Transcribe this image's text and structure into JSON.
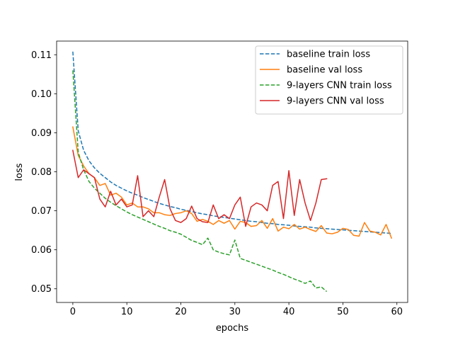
{
  "chart_data": {
    "type": "line",
    "title": "",
    "xlabel": "epochs",
    "ylabel": "loss",
    "xlim": [
      -3,
      62
    ],
    "ylim": [
      0.0465,
      0.1135
    ],
    "xticks": [
      0,
      10,
      20,
      30,
      40,
      50,
      60
    ],
    "yticks": [
      0.05,
      0.06,
      0.07,
      0.08,
      0.09,
      0.1,
      0.11
    ],
    "ytick_labels": [
      "0.05",
      "0.06",
      "0.07",
      "0.08",
      "0.09",
      "0.10",
      "0.11"
    ],
    "grid": false,
    "legend_position": "upper right",
    "series": [
      {
        "name": "baseline train loss",
        "color": "#1f77b4",
        "style": "dashed",
        "x": [
          0,
          1,
          2,
          3,
          4,
          5,
          6,
          7,
          8,
          9,
          10,
          11,
          12,
          13,
          14,
          15,
          16,
          17,
          18,
          19,
          20,
          21,
          22,
          23,
          24,
          25,
          26,
          27,
          28,
          29,
          30,
          31,
          32,
          33,
          34,
          35,
          36,
          37,
          38,
          39,
          40,
          41,
          42,
          43,
          44,
          45,
          46,
          47,
          48,
          49,
          50,
          51,
          52,
          53,
          54,
          55,
          56,
          57,
          58,
          59
        ],
        "values": [
          0.1108,
          0.0905,
          0.0855,
          0.0828,
          0.081,
          0.0796,
          0.0785,
          0.0774,
          0.0765,
          0.0758,
          0.0751,
          0.0745,
          0.074,
          0.0734,
          0.0729,
          0.0724,
          0.0719,
          0.0715,
          0.0711,
          0.0708,
          0.0704,
          0.0701,
          0.0698,
          0.0695,
          0.0692,
          0.069,
          0.0687,
          0.0685,
          0.0683,
          0.0681,
          0.0679,
          0.0677,
          0.0675,
          0.0673,
          0.0672,
          0.067,
          0.0668,
          0.0667,
          0.0665,
          0.0664,
          0.0663,
          0.0661,
          0.066,
          0.0659,
          0.0658,
          0.0656,
          0.0655,
          0.0654,
          0.0653,
          0.0652,
          0.0651,
          0.065,
          0.0649,
          0.0648,
          0.0647,
          0.0646,
          0.0645,
          0.0644,
          0.0643,
          0.0642
        ]
      },
      {
        "name": "baseline val loss",
        "color": "#ff7f0e",
        "style": "solid",
        "x": [
          0,
          1,
          2,
          3,
          4,
          5,
          6,
          7,
          8,
          9,
          10,
          11,
          12,
          13,
          14,
          15,
          16,
          17,
          18,
          19,
          20,
          21,
          22,
          23,
          24,
          25,
          26,
          27,
          28,
          29,
          30,
          31,
          32,
          33,
          34,
          35,
          36,
          37,
          38,
          39,
          40,
          41,
          42,
          43,
          44,
          45,
          46,
          47,
          48,
          49,
          50,
          51,
          52,
          53,
          54,
          55,
          56,
          57,
          58,
          59
        ],
        "values": [
          0.0915,
          0.0842,
          0.0815,
          0.0795,
          0.0785,
          0.0765,
          0.077,
          0.074,
          0.0745,
          0.0735,
          0.0715,
          0.072,
          0.071,
          0.071,
          0.0705,
          0.0695,
          0.0695,
          0.069,
          0.0688,
          0.0693,
          0.0695,
          0.07,
          0.0693,
          0.0673,
          0.0678,
          0.0673,
          0.0665,
          0.0675,
          0.0668,
          0.0675,
          0.0653,
          0.0673,
          0.067,
          0.066,
          0.0662,
          0.0675,
          0.0655,
          0.068,
          0.0648,
          0.0658,
          0.0654,
          0.0665,
          0.0653,
          0.0658,
          0.0652,
          0.0647,
          0.0662,
          0.0643,
          0.0641,
          0.0645,
          0.0655,
          0.0652,
          0.0637,
          0.0635,
          0.067,
          0.0648,
          0.0645,
          0.0638,
          0.0665,
          0.063
        ]
      },
      {
        "name": "9-layers CNN train loss",
        "color": "#2ca02c",
        "style": "dashed",
        "x": [
          0,
          1,
          2,
          3,
          4,
          5,
          6,
          7,
          8,
          9,
          10,
          11,
          12,
          13,
          14,
          15,
          16,
          17,
          18,
          19,
          20,
          21,
          22,
          23,
          24,
          25,
          26,
          27,
          28,
          29,
          30,
          31,
          32,
          33,
          34,
          35,
          36,
          37,
          38,
          39,
          40,
          41,
          42,
          43,
          44,
          45,
          46,
          47
        ],
        "values": [
          0.106,
          0.085,
          0.0805,
          0.0775,
          0.0758,
          0.0745,
          0.0732,
          0.0722,
          0.0713,
          0.0705,
          0.0697,
          0.069,
          0.0684,
          0.0678,
          0.0672,
          0.0666,
          0.066,
          0.0655,
          0.0649,
          0.0645,
          0.064,
          0.0632,
          0.0624,
          0.0619,
          0.0613,
          0.063,
          0.06,
          0.0594,
          0.059,
          0.0587,
          0.0625,
          0.0578,
          0.0573,
          0.0568,
          0.0563,
          0.0558,
          0.0553,
          0.0548,
          0.0542,
          0.0537,
          0.0531,
          0.0525,
          0.052,
          0.0514,
          0.052,
          0.0502,
          0.0505,
          0.0493
        ]
      },
      {
        "name": "9-layers CNN val loss",
        "color": "#d62728",
        "style": "solid",
        "x": [
          0,
          1,
          2,
          3,
          4,
          5,
          6,
          7,
          8,
          9,
          10,
          11,
          12,
          13,
          14,
          15,
          16,
          17,
          18,
          19,
          20,
          21,
          22,
          23,
          24,
          25,
          26,
          27,
          28,
          29,
          30,
          31,
          32,
          33,
          34,
          35,
          36,
          37,
          38,
          39,
          40,
          41,
          42,
          43,
          44,
          45,
          46,
          47
        ],
        "values": [
          0.0855,
          0.0785,
          0.0805,
          0.0795,
          0.0785,
          0.073,
          0.071,
          0.075,
          0.0715,
          0.073,
          0.071,
          0.0715,
          0.079,
          0.0685,
          0.07,
          0.0685,
          0.0735,
          0.078,
          0.0705,
          0.0675,
          0.067,
          0.068,
          0.0712,
          0.068,
          0.0672,
          0.067,
          0.0715,
          0.068,
          0.069,
          0.068,
          0.0715,
          0.0735,
          0.066,
          0.071,
          0.072,
          0.0715,
          0.07,
          0.0765,
          0.0775,
          0.068,
          0.0803,
          0.0688,
          0.078,
          0.072,
          0.0675,
          0.072,
          0.078,
          0.0782
        ]
      }
    ]
  }
}
